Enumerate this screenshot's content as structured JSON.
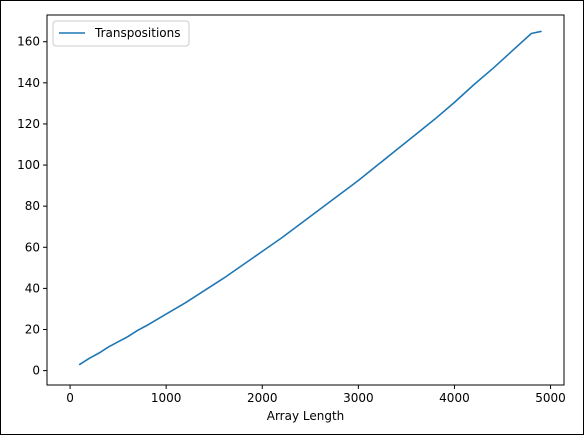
{
  "chart_data": {
    "type": "line",
    "title": "",
    "xlabel": "Array Length",
    "ylabel": "",
    "xlim": [
      -240,
      5140
    ],
    "ylim": [
      -7,
      173
    ],
    "xticks": [
      0,
      1000,
      2000,
      3000,
      4000,
      5000
    ],
    "yticks": [
      0,
      20,
      40,
      60,
      80,
      100,
      120,
      140,
      160
    ],
    "grid": false,
    "legend": {
      "placement": "top-left",
      "entries": [
        "Transpositions"
      ]
    },
    "series": [
      {
        "name": "Transpositions",
        "color": "#1f77b4",
        "x": [
          100,
          200,
          300,
          400,
          500,
          600,
          700,
          800,
          1000,
          1200,
          1400,
          1600,
          1800,
          2000,
          2200,
          2400,
          2600,
          2800,
          3000,
          3200,
          3400,
          3600,
          3800,
          4000,
          4200,
          4400,
          4600,
          4800,
          4900
        ],
        "y": [
          3,
          6,
          8.5,
          11.5,
          14,
          16.5,
          19.5,
          22,
          27.5,
          33,
          39,
          45,
          51.5,
          58,
          64.5,
          71.5,
          78.5,
          85.5,
          92.5,
          100,
          107.5,
          115,
          122.5,
          130.5,
          139,
          147,
          155.5,
          164,
          165
        ]
      }
    ]
  }
}
